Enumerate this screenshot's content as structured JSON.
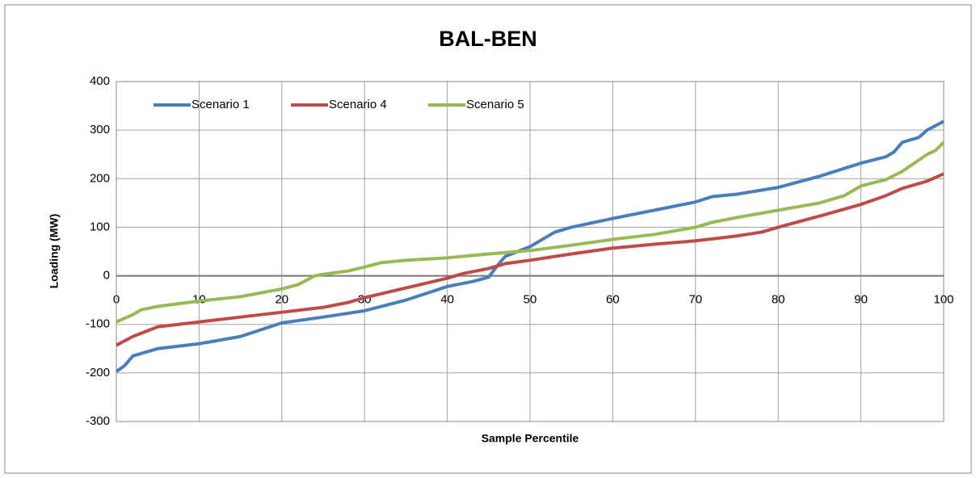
{
  "chart_data": {
    "type": "line",
    "title": "BAL-BEN",
    "xlabel": "Sample Percentile",
    "ylabel": "Loading (MW)",
    "xlim": [
      0,
      100
    ],
    "xticks": [
      0,
      10,
      20,
      30,
      40,
      50,
      60,
      70,
      80,
      90,
      100
    ],
    "ylim": [
      -300,
      400
    ],
    "yticks": [
      -300,
      -200,
      -100,
      0,
      100,
      200,
      300,
      400
    ],
    "grid": true,
    "legend": "top-left",
    "series": [
      {
        "name": "Scenario 1",
        "color": "#4a7ebb",
        "x": [
          0,
          1,
          2,
          5,
          10,
          15,
          20,
          25,
          30,
          35,
          40,
          43,
          45,
          46,
          47,
          50,
          53,
          55,
          60,
          65,
          70,
          72,
          75,
          80,
          85,
          90,
          93,
          94,
          95,
          97,
          98,
          100
        ],
        "values": [
          -197,
          -185,
          -165,
          -150,
          -140,
          -125,
          -97,
          -85,
          -72,
          -50,
          -22,
          -12,
          -3,
          20,
          40,
          60,
          90,
          100,
          118,
          135,
          152,
          163,
          168,
          182,
          205,
          232,
          245,
          255,
          275,
          285,
          300,
          318
        ]
      },
      {
        "name": "Scenario 4",
        "color": "#be4b48",
        "x": [
          0,
          2,
          5,
          10,
          15,
          20,
          25,
          28,
          30,
          35,
          40,
          42,
          45,
          47,
          50,
          55,
          60,
          65,
          70,
          75,
          78,
          80,
          85,
          90,
          93,
          95,
          98,
          100
        ],
        "values": [
          -143,
          -125,
          -105,
          -95,
          -85,
          -75,
          -65,
          -55,
          -45,
          -25,
          -5,
          5,
          15,
          25,
          32,
          45,
          57,
          65,
          72,
          82,
          90,
          100,
          123,
          147,
          165,
          180,
          195,
          210
        ]
      },
      {
        "name": "Scenario 5",
        "color": "#98b954",
        "x": [
          0,
          2,
          3,
          5,
          10,
          15,
          20,
          22,
          24,
          25,
          28,
          30,
          32,
          35,
          40,
          45,
          50,
          55,
          60,
          65,
          70,
          72,
          75,
          80,
          85,
          88,
          90,
          93,
          95,
          98,
          99,
          100
        ],
        "values": [
          -95,
          -80,
          -70,
          -63,
          -52,
          -43,
          -27,
          -18,
          0,
          3,
          10,
          18,
          27,
          32,
          37,
          45,
          52,
          63,
          75,
          85,
          100,
          110,
          120,
          135,
          150,
          165,
          185,
          198,
          215,
          250,
          258,
          275
        ]
      }
    ]
  }
}
